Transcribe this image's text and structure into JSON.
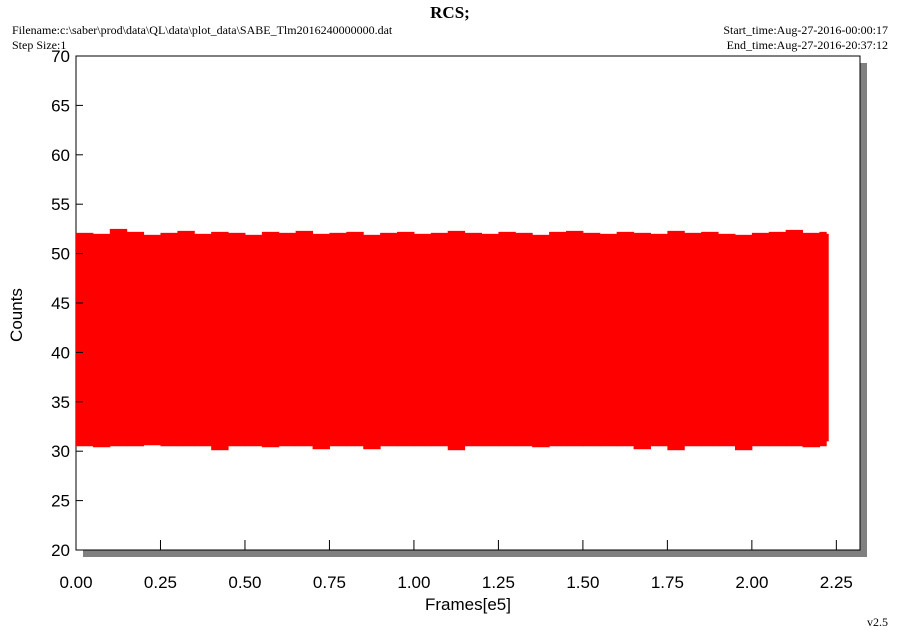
{
  "chart_data": {
    "type": "band",
    "title": "RCS;",
    "filename": "Filename:c:\\saber\\prod\\data\\QL\\data\\plot_data\\SABE_Tlm2016240000000.dat",
    "step_size": "Step Size:1",
    "start_time": "Start_time:Aug-27-2016-00:00:17",
    "end_time": "End_time:Aug-27-2016-20:37:12",
    "version": "v2.5",
    "x_label": "Frames[e5]",
    "y_label": "Counts",
    "color": "#ff0000",
    "xlim": [
      0,
      2.32
    ],
    "ylim": [
      20,
      70
    ],
    "xticks": [
      {
        "value": 0,
        "label": "0.00"
      },
      {
        "value": 0.25,
        "label": "0.25"
      },
      {
        "value": 0.5,
        "label": "0.50"
      },
      {
        "value": 0.75,
        "label": "0.75"
      },
      {
        "value": 1,
        "label": "1.00"
      },
      {
        "value": 1.25,
        "label": "1.25"
      },
      {
        "value": 1.5,
        "label": "1.50"
      },
      {
        "value": 1.75,
        "label": "1.75"
      },
      {
        "value": 2,
        "label": "2.00"
      },
      {
        "value": 2.25,
        "label": "2.25"
      }
    ],
    "yticks": [
      20,
      25,
      30,
      35,
      40,
      45,
      50,
      55,
      60,
      65,
      70
    ],
    "x": [
      0,
      0.05,
      0.1,
      0.15,
      0.2,
      0.25,
      0.3,
      0.35,
      0.4,
      0.45,
      0.5,
      0.55,
      0.6,
      0.65,
      0.7,
      0.75,
      0.8,
      0.85,
      0.9,
      0.95,
      1,
      1.05,
      1.1,
      1.15,
      1.2,
      1.25,
      1.3,
      1.35,
      1.4,
      1.45,
      1.5,
      1.55,
      1.6,
      1.65,
      1.7,
      1.75,
      1.8,
      1.85,
      1.9,
      1.95,
      2,
      2.05,
      2.1,
      2.15,
      2.2,
      2.22
    ],
    "upper": [
      52.1,
      52.0,
      52.5,
      52.2,
      51.9,
      52.1,
      52.3,
      52.0,
      52.2,
      52.1,
      51.9,
      52.2,
      52.1,
      52.3,
      52.0,
      52.1,
      52.2,
      51.9,
      52.1,
      52.2,
      52.0,
      52.1,
      52.3,
      52.1,
      52.0,
      52.2,
      52.1,
      51.9,
      52.2,
      52.3,
      52.1,
      52.0,
      52.2,
      52.1,
      52.0,
      52.3,
      52.1,
      52.2,
      52.0,
      51.9,
      52.1,
      52.2,
      52.4,
      52.1,
      52.2,
      52.0
    ],
    "lower": [
      30.5,
      30.4,
      30.5,
      30.5,
      30.6,
      30.5,
      30.5,
      30.5,
      30.1,
      30.5,
      30.5,
      30.4,
      30.5,
      30.5,
      30.2,
      30.5,
      30.5,
      30.2,
      30.5,
      30.5,
      30.5,
      30.5,
      30.1,
      30.5,
      30.5,
      30.5,
      30.5,
      30.4,
      30.5,
      30.5,
      30.5,
      30.5,
      30.5,
      30.2,
      30.5,
      30.1,
      30.5,
      30.5,
      30.5,
      30.1,
      30.5,
      30.5,
      30.5,
      30.4,
      30.5,
      31.0
    ]
  }
}
